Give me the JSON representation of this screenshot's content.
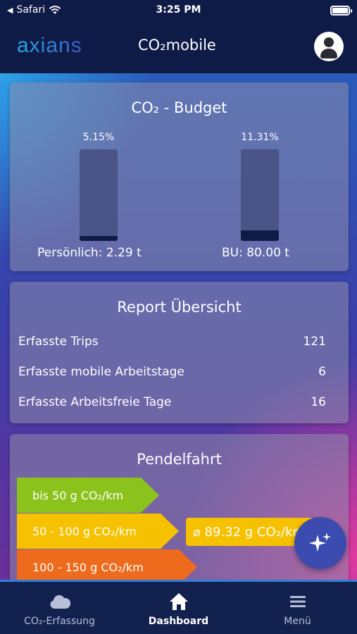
{
  "status_bar": {
    "back_app": "Safari",
    "time": "3:25 PM"
  },
  "header": {
    "logo": "axians",
    "title": "CO₂mobile"
  },
  "budget": {
    "title": "CO₂ - Budget",
    "personal": {
      "percent_label": "5.15%",
      "fill_percent": 5.15,
      "label": "Persönlich: 2.29 t"
    },
    "bu": {
      "percent_label": "11.31%",
      "fill_percent": 11.31,
      "label": "BU: 80.00 t"
    }
  },
  "report": {
    "title": "Report Übersicht",
    "rows": [
      {
        "label": "Erfasste Trips",
        "value": "121"
      },
      {
        "label": "Erfasste mobile Arbeitstage",
        "value": "6"
      },
      {
        "label": "Erfasste Arbeitsfreie Tage",
        "value": "16"
      }
    ]
  },
  "pendel": {
    "title": "Pendelfahrt",
    "categories": [
      {
        "label": "bis 50 g CO₂/km",
        "color": "#8cc21c"
      },
      {
        "label": "50 - 100 g CO₂/km",
        "color": "#f6c100"
      },
      {
        "label": "100 - 150 g CO₂/km",
        "color": "#ee6b1d"
      }
    ],
    "average": "⌀ 89.32 g CO₂/km"
  },
  "nav": {
    "items": [
      {
        "label": "CO₂-Erfassung",
        "icon": "cloud-icon"
      },
      {
        "label": "Dashboard",
        "icon": "home-icon"
      },
      {
        "label": "Menü",
        "icon": "menu-icon"
      }
    ]
  },
  "fab_icon": "sparkle-icon"
}
